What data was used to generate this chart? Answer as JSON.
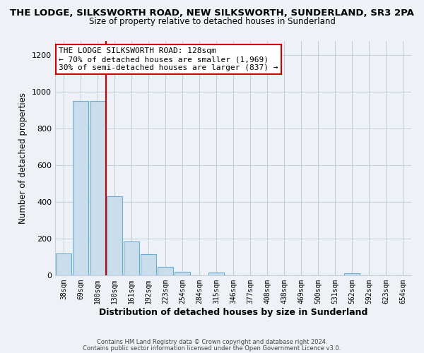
{
  "title": "THE LODGE, SILKSWORTH ROAD, NEW SILKSWORTH, SUNDERLAND, SR3 2PA",
  "subtitle": "Size of property relative to detached houses in Sunderland",
  "xlabel": "Distribution of detached houses by size in Sunderland",
  "ylabel": "Number of detached properties",
  "bar_labels": [
    "38sqm",
    "69sqm",
    "100sqm",
    "130sqm",
    "161sqm",
    "192sqm",
    "223sqm",
    "254sqm",
    "284sqm",
    "315sqm",
    "346sqm",
    "377sqm",
    "408sqm",
    "438sqm",
    "469sqm",
    "500sqm",
    "531sqm",
    "562sqm",
    "592sqm",
    "623sqm",
    "654sqm"
  ],
  "bar_values": [
    120,
    950,
    950,
    430,
    185,
    115,
    47,
    18,
    0,
    15,
    0,
    0,
    0,
    0,
    0,
    0,
    0,
    13,
    0,
    0,
    0
  ],
  "bar_color": "#c9dded",
  "bar_edge_color": "#6aaed6",
  "vline_color": "#cc0000",
  "annotation_title": "THE LODGE SILKSWORTH ROAD: 128sqm",
  "annotation_line1": "← 70% of detached houses are smaller (1,969)",
  "annotation_line2": "30% of semi-detached houses are larger (837) →",
  "annotation_box_edge": "#cc0000",
  "ylim": [
    0,
    1280
  ],
  "yticks": [
    0,
    200,
    400,
    600,
    800,
    1000,
    1200
  ],
  "background_color": "#eef2f7",
  "plot_bg_color": "#eef2f7",
  "grid_color": "#c8d0dc",
  "footer_line1": "Contains HM Land Registry data © Crown copyright and database right 2024.",
  "footer_line2": "Contains public sector information licensed under the Open Government Licence v3.0.",
  "title_fontsize": 9.5,
  "subtitle_fontsize": 8.5
}
